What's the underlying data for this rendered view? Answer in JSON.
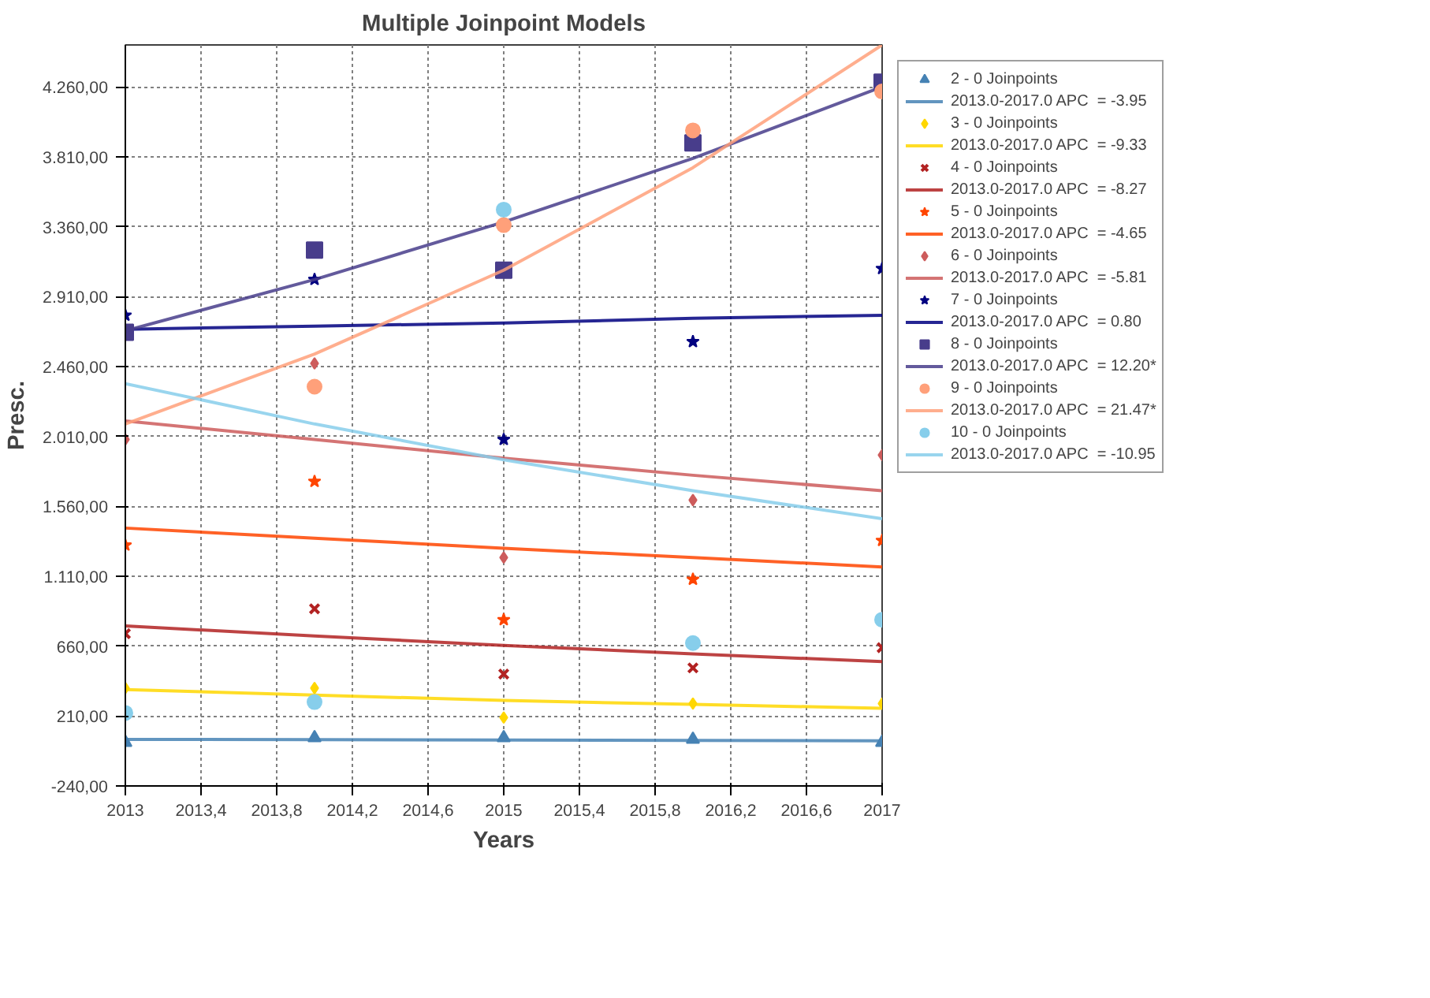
{
  "chart_data": {
    "type": "scatter",
    "title": "Multiple Joinpoint Models",
    "xlabel": "Years",
    "ylabel": "Presc.",
    "x": [
      2013,
      2014,
      2015,
      2016,
      2017
    ],
    "xlim": [
      2013,
      2017
    ],
    "ylim": [
      -240,
      4530
    ],
    "xticks": [
      2013,
      {
        "value": 2013.4,
        "label": "2013,4"
      },
      {
        "value": 2013.8,
        "label": "2013,8"
      },
      {
        "value": 2014.2,
        "label": "2014,2"
      },
      {
        "value": 2014.6,
        "label": "2014,6"
      },
      2015,
      {
        "value": 2015.4,
        "label": "2015,4"
      },
      {
        "value": 2015.8,
        "label": "2015,8"
      },
      {
        "value": 2016.2,
        "label": "2016,2"
      },
      {
        "value": 2016.6,
        "label": "2016,6"
      },
      2017
    ],
    "yticks": [
      {
        "value": -240,
        "label": "-240,00"
      },
      {
        "value": 210,
        "label": "210,00"
      },
      {
        "value": 660,
        "label": "660,00"
      },
      {
        "value": 1110,
        "label": "1.110,00"
      },
      {
        "value": 1560,
        "label": "1.560,00"
      },
      {
        "value": 2010,
        "label": "2.010,00"
      },
      {
        "value": 2460,
        "label": "2.460,00"
      },
      {
        "value": 2910,
        "label": "2.910,00"
      },
      {
        "value": 3360,
        "label": "3.360,00"
      },
      {
        "value": 3810,
        "label": "3.810,00"
      },
      {
        "value": 4260,
        "label": "4.260,00"
      }
    ],
    "grid": true,
    "legend": "right",
    "series": [
      {
        "marker": "triangle",
        "name": "2 - 0 Joinpoints",
        "color": "#4682b4",
        "values": [
          40,
          70,
          70,
          60,
          40
        ]
      },
      {
        "type": "line",
        "name": "2013.0-2017.0 APC  = -3.95",
        "color": "#4682b4",
        "values": [
          60,
          58,
          55,
          53,
          51
        ]
      },
      {
        "marker": "diamond",
        "name": "3 - 0 Joinpoints",
        "color": "#ffd700",
        "values": [
          390,
          390,
          200,
          290,
          290
        ]
      },
      {
        "type": "line",
        "name": "2013.0-2017.0 APC  = -9.33",
        "color": "#ffd700",
        "values": [
          380,
          345,
          310,
          285,
          260
        ]
      },
      {
        "marker": "cross",
        "name": "4 - 0 Joinpoints",
        "color": "#b22222",
        "values": [
          740,
          900,
          480,
          520,
          650
        ]
      },
      {
        "type": "line",
        "name": "2013.0-2017.0 APC  = -8.27",
        "color": "#b22222",
        "values": [
          790,
          725,
          665,
          610,
          560
        ]
      },
      {
        "marker": "star",
        "name": "5 - 0 Joinpoints",
        "color": "#ff4500",
        "values": [
          1310,
          1720,
          830,
          1090,
          1340
        ]
      },
      {
        "type": "line",
        "name": "2013.0-2017.0 APC  = -4.65",
        "color": "#ff4500",
        "values": [
          1420,
          1355,
          1290,
          1230,
          1170
        ]
      },
      {
        "marker": "diamond",
        "name": "6 - 0 Joinpoints",
        "color": "#cd5c5c",
        "values": [
          1990,
          2480,
          1230,
          1600,
          1890
        ]
      },
      {
        "type": "line",
        "name": "2013.0-2017.0 APC  = -5.81",
        "color": "#cd5c5c",
        "values": [
          2110,
          1990,
          1870,
          1760,
          1660
        ]
      },
      {
        "marker": "star",
        "name": "7 - 0 Joinpoints",
        "color": "#000080",
        "values": [
          2790,
          3020,
          1990,
          2620,
          3090
        ]
      },
      {
        "type": "line",
        "name": "2013.0-2017.0 APC  = 0.80",
        "color": "#000080",
        "values": [
          2700,
          2720,
          2740,
          2770,
          2790
        ]
      },
      {
        "marker": "square",
        "name": "8 - 0 Joinpoints",
        "color": "#483d8b",
        "values": [
          2680,
          3210,
          3080,
          3900,
          4290
        ]
      },
      {
        "type": "line",
        "name": "2013.0-2017.0 APC  = 12.20*",
        "color": "#483d8b",
        "values": [
          2690,
          3020,
          3390,
          3800,
          4260
        ]
      },
      {
        "marker": "circle",
        "name": "9 - 0 Joinpoints",
        "color": "#ffa07a",
        "values": [
          null,
          2330,
          3370,
          3980,
          4230
        ]
      },
      {
        "type": "line",
        "name": "2013.0-2017.0 APC  = 21.47*",
        "color": "#ffa07a",
        "values": [
          2090,
          2540,
          3080,
          3740,
          4530
        ]
      },
      {
        "marker": "circle",
        "name": "10 - 0 Joinpoints",
        "color": "#87ceeb",
        "values": [
          230,
          300,
          3470,
          680,
          830
        ]
      },
      {
        "type": "line",
        "name": "2013.0-2017.0 APC  = -10.95",
        "color": "#87ceeb",
        "values": [
          2350,
          2090,
          1860,
          1660,
          1480
        ]
      }
    ]
  }
}
